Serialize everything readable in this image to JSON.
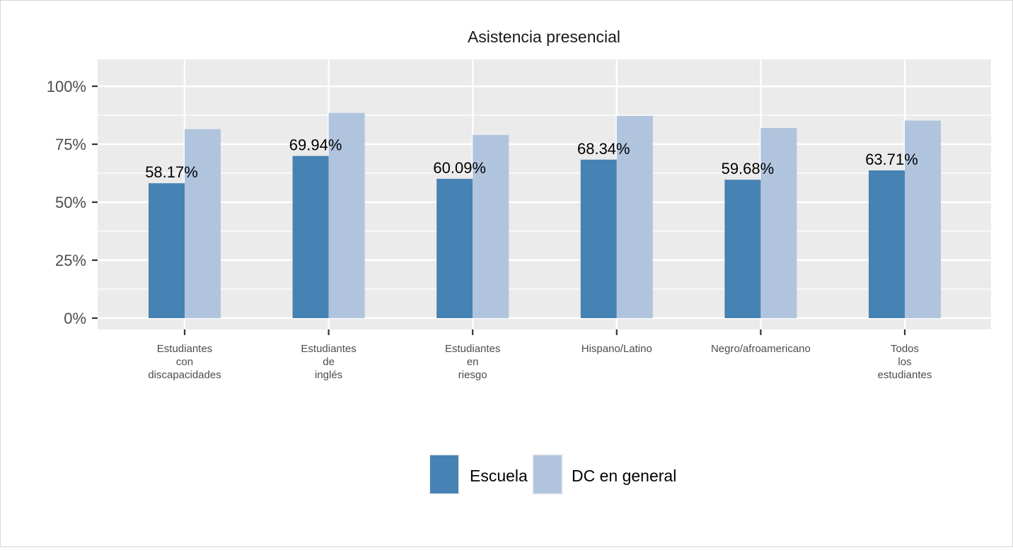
{
  "chart_data": {
    "type": "bar",
    "title": "Asistencia presencial",
    "xlabel": "",
    "ylabel": "",
    "ylim": [
      0,
      1.1
    ],
    "y_ticks": [
      0,
      0.25,
      0.5,
      0.75,
      1.0
    ],
    "y_tick_labels": [
      "0%",
      "25%",
      "50%",
      "75%",
      "100%"
    ],
    "categories": [
      [
        "Estudiantes",
        "con",
        "discapacidades"
      ],
      [
        "Estudiantes",
        "de",
        "inglés"
      ],
      [
        "Estudiantes",
        "en",
        "riesgo"
      ],
      [
        "Hispano/Latino"
      ],
      [
        "Negro/afroamericano"
      ],
      [
        "Todos",
        "los",
        "estudiantes"
      ]
    ],
    "series": [
      {
        "name": "Escuela",
        "color": "#4682B4",
        "values": [
          0.5817,
          0.6994,
          0.6009,
          0.6834,
          0.5968,
          0.6371
        ],
        "labels": [
          "58.17%",
          "69.94%",
          "60.09%",
          "68.34%",
          "59.68%",
          "63.71%"
        ]
      },
      {
        "name": "DC en general",
        "color": "#B0C4DE",
        "values": [
          0.815,
          0.885,
          0.79,
          0.872,
          0.82,
          0.852
        ]
      }
    ],
    "grid": true,
    "legend_position": "bottom",
    "panel_color": "#EBEBEB",
    "grid_color": "#FFFFFF"
  }
}
